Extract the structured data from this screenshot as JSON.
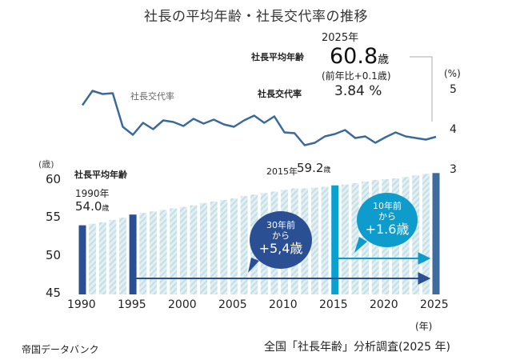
{
  "title": "社長の平均年齢・社長交代率の推移",
  "summary": {
    "year": "2025年",
    "age_label": "社長平均年齢",
    "age_value": "60.8",
    "age_unit": "歳",
    "age_diff": "(前年比+0.1歳)",
    "rate_label": "社長交代率",
    "rate_value": "3.84 %"
  },
  "annotations": {
    "bar_series_label": "社長平均年齢",
    "y1990": "1990年",
    "v1990": "54.0",
    "y2015": "2015年",
    "v2015": "59.2",
    "unit": "歳",
    "line_label": "社長交代率",
    "bubble30": {
      "l1": "30年前",
      "l2": "から",
      "l3": "+5,4歳"
    },
    "bubble10": {
      "l1": "10年前",
      "l2": "から",
      "l3": "+1.6歳"
    }
  },
  "axes": {
    "left_unit": "(歳)",
    "left_ticks": [
      "60",
      "55",
      "50",
      "45"
    ],
    "right_unit": "(%)",
    "right_ticks": [
      "5",
      "4",
      "3"
    ],
    "x_ticks": [
      "1990",
      "1995",
      "2000",
      "2005",
      "2010",
      "2015",
      "2020",
      "2025"
    ],
    "x_unit": "(年)"
  },
  "footer": {
    "source": "帝国データバンク",
    "survey": "全国「社長年齢」分析調査(2025 年)"
  },
  "colors": {
    "highlight_bar": "#2b4f93",
    "highlight_2015": "#0aa0d0",
    "highlight_2025": "#3f6b9e",
    "hatched_bar": "#cfe6ea",
    "line": "#3b6a9a",
    "bubble30": "#2b4f93",
    "bubble10": "#0e9ccc"
  },
  "chart_data": [
    {
      "type": "bar",
      "title": "社長平均年齢",
      "ylabel": "(歳)",
      "xlabel": "(年)",
      "ylim": [
        45,
        60
      ],
      "x": [
        1990,
        1991,
        1992,
        1993,
        1994,
        1995,
        1996,
        1997,
        1998,
        1999,
        2000,
        2001,
        2002,
        2003,
        2004,
        2005,
        2006,
        2007,
        2008,
        2009,
        2010,
        2011,
        2012,
        2013,
        2014,
        2015,
        2016,
        2017,
        2018,
        2019,
        2020,
        2021,
        2022,
        2023,
        2024,
        2025
      ],
      "values": [
        54.0,
        54.2,
        54.4,
        54.7,
        55.0,
        55.4,
        55.6,
        55.8,
        56.0,
        56.2,
        56.4,
        56.6,
        56.9,
        57.1,
        57.3,
        57.5,
        57.8,
        58.0,
        58.2,
        58.4,
        58.6,
        58.8,
        58.8,
        58.9,
        59.0,
        59.2,
        59.3,
        59.5,
        59.7,
        59.9,
        60.0,
        60.1,
        60.3,
        60.5,
        60.7,
        60.8
      ],
      "highlighted": [
        1990,
        1995,
        2015,
        2025
      ]
    },
    {
      "type": "line",
      "title": "社長交代率",
      "ylabel": "(%)",
      "ylim": [
        3,
        5
      ],
      "x": [
        1990,
        1991,
        1992,
        1993,
        1994,
        1995,
        1996,
        1997,
        1998,
        1999,
        2000,
        2001,
        2002,
        2003,
        2004,
        2005,
        2006,
        2007,
        2008,
        2009,
        2010,
        2011,
        2012,
        2013,
        2014,
        2015,
        2016,
        2017,
        2018,
        2019,
        2020,
        2021,
        2022,
        2023,
        2024,
        2025
      ],
      "values": [
        4.63,
        4.99,
        4.91,
        4.93,
        4.09,
        3.89,
        4.19,
        4.03,
        4.25,
        4.21,
        4.11,
        4.29,
        4.17,
        4.27,
        4.15,
        4.09,
        4.25,
        4.37,
        4.19,
        4.35,
        3.95,
        3.93,
        3.63,
        3.69,
        3.85,
        3.91,
        4.01,
        3.81,
        3.85,
        3.69,
        3.83,
        3.95,
        3.85,
        3.81,
        3.77,
        3.84
      ]
    }
  ]
}
